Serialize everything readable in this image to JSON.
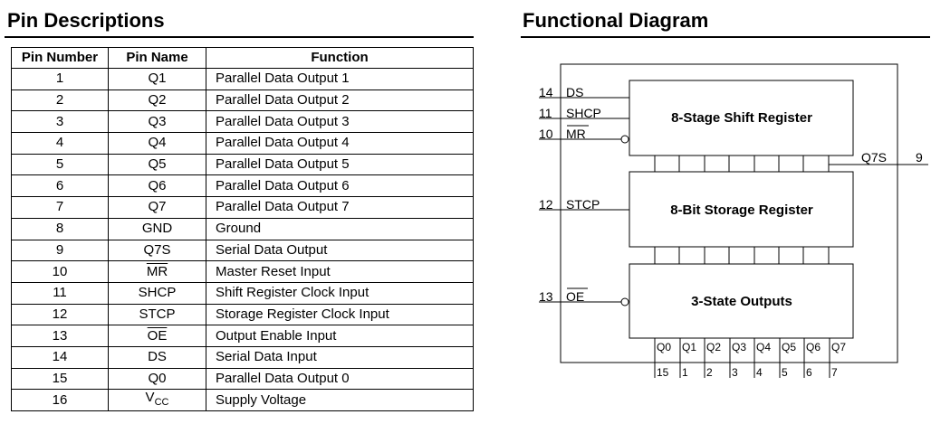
{
  "left": {
    "title": "Pin Descriptions",
    "headers": {
      "pin_number": "Pin Number",
      "pin_name": "Pin Name",
      "function": "Function"
    },
    "rows": [
      {
        "num": "1",
        "name": "Q1",
        "func": "Parallel Data Output 1"
      },
      {
        "num": "2",
        "name": "Q2",
        "func": "Parallel Data Output 2"
      },
      {
        "num": "3",
        "name": "Q3",
        "func": "Parallel Data Output 3"
      },
      {
        "num": "4",
        "name": "Q4",
        "func": "Parallel Data Output 4"
      },
      {
        "num": "5",
        "name": "Q5",
        "func": "Parallel Data Output 5"
      },
      {
        "num": "6",
        "name": "Q6",
        "func": "Parallel Data Output 6"
      },
      {
        "num": "7",
        "name": "Q7",
        "func": "Parallel Data Output 7"
      },
      {
        "num": "8",
        "name": "GND",
        "func": "Ground"
      },
      {
        "num": "9",
        "name": "Q7S",
        "func": "Serial Data Output"
      },
      {
        "num": "10",
        "name": "MR",
        "func": "Master Reset Input"
      },
      {
        "num": "11",
        "name": "SHCP",
        "func": "Shift Register Clock Input"
      },
      {
        "num": "12",
        "name": "STCP",
        "func": "Storage Register Clock Input"
      },
      {
        "num": "13",
        "name": "OE",
        "func": "Output Enable Input"
      },
      {
        "num": "14",
        "name": "DS",
        "func": "Serial Data Input"
      },
      {
        "num": "15",
        "name": "Q0",
        "func": "Parallel Data Output 0"
      },
      {
        "num": "16",
        "name_main": "V",
        "name_sub": "CC",
        "func": "Supply Voltage"
      }
    ]
  },
  "right": {
    "title": "Functional Diagram",
    "blocks": {
      "shift": "8-Stage Shift Register",
      "storage": "8-Bit Storage Register",
      "outputs": "3-State Outputs"
    },
    "inputs": {
      "ds": {
        "num": "14",
        "name": "DS"
      },
      "shcp": {
        "num": "11",
        "name": "SHCP"
      },
      "mr": {
        "num": "10",
        "name": "MR"
      },
      "stcp": {
        "num": "12",
        "name": "STCP"
      },
      "oe": {
        "num": "13",
        "name": "OE"
      }
    },
    "q7s": {
      "name": "Q7S",
      "num": "9"
    },
    "outputs": [
      {
        "name": "Q0",
        "num": "15"
      },
      {
        "name": "Q1",
        "num": "1"
      },
      {
        "name": "Q2",
        "num": "2"
      },
      {
        "name": "Q3",
        "num": "3"
      },
      {
        "name": "Q4",
        "num": "4"
      },
      {
        "name": "Q5",
        "num": "5"
      },
      {
        "name": "Q6",
        "num": "6"
      },
      {
        "name": "Q7",
        "num": "7"
      }
    ]
  }
}
